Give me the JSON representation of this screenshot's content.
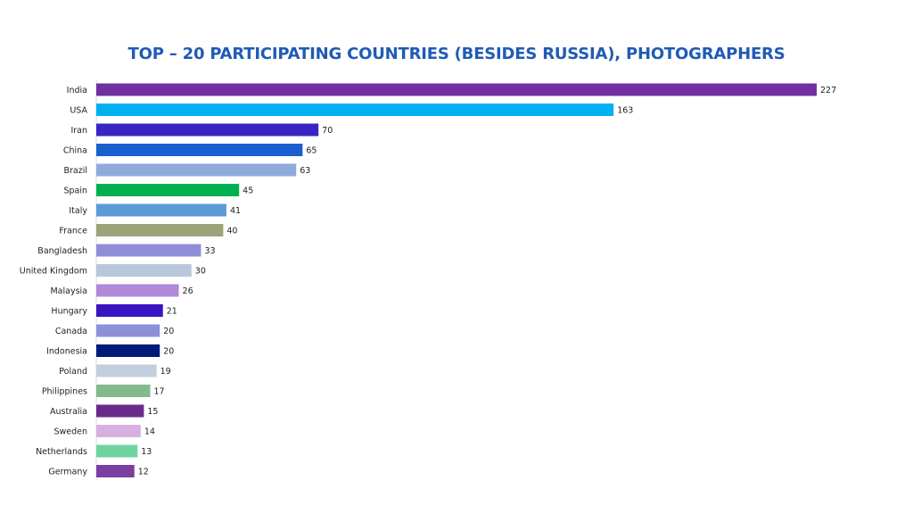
{
  "chart_data": {
    "type": "bar",
    "orientation": "horizontal",
    "title": "TOP – 20 PARTICIPATING COUNTRIES (BESIDES RUSSIA), PHOTOGRAPHERS",
    "xlabel": "",
    "ylabel": "",
    "xlim": [
      0,
      227
    ],
    "grid": false,
    "categories": [
      "India",
      "USA",
      "Iran",
      "China",
      "Brazil",
      "Spain",
      "Italy",
      "France",
      "Bangladesh",
      "United Kingdom",
      "Malaysia",
      "Hungary",
      "Canada",
      "Indonesia",
      "Poland",
      "Philippines",
      "Australia",
      "Sweden",
      "Netherlands",
      "Germany"
    ],
    "values": [
      227,
      163,
      70,
      65,
      63,
      45,
      41,
      40,
      33,
      30,
      26,
      21,
      20,
      20,
      19,
      17,
      15,
      14,
      13,
      12
    ],
    "colors": [
      "#7030a0",
      "#00b0f0",
      "#3a24c4",
      "#1a5fd0",
      "#8faadc",
      "#00b050",
      "#5b9bd5",
      "#9ba37a",
      "#8e8fd8",
      "#b8c7dc",
      "#b089d8",
      "#3a14c0",
      "#8e90d8",
      "#001a78",
      "#c3cfdf",
      "#84b98c",
      "#6a2a8a",
      "#d8b0e0",
      "#6fd3a0",
      "#7b3fa0"
    ]
  }
}
